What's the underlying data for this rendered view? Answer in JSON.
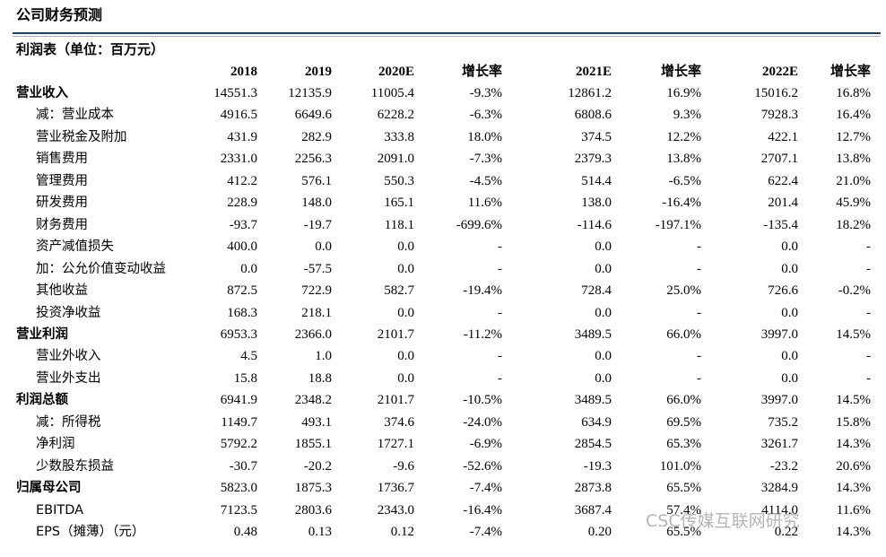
{
  "header": {
    "title": "公司财务预测",
    "subtitle": "利润表（单位：百万元）"
  },
  "table": {
    "columns": [
      "2018",
      "2019",
      "2020E",
      "增长率",
      "2021E",
      "增长率",
      "2022E",
      "增长率"
    ],
    "rows": [
      [
        "营业收入",
        "14551.3",
        "12135.9",
        "11005.4",
        "-9.3%",
        "12861.2",
        "16.9%",
        "15016.2",
        "16.8%"
      ],
      [
        "减：营业成本",
        "4916.5",
        "6649.6",
        "6228.2",
        "-6.3%",
        "6808.6",
        "9.3%",
        "7928.3",
        "16.4%"
      ],
      [
        "营业税金及附加",
        "431.9",
        "282.9",
        "333.8",
        "18.0%",
        "374.5",
        "12.2%",
        "422.1",
        "12.7%"
      ],
      [
        "销售费用",
        "2331.0",
        "2256.3",
        "2091.0",
        "-7.3%",
        "2379.3",
        "13.8%",
        "2707.1",
        "13.8%"
      ],
      [
        "管理费用",
        "412.2",
        "576.1",
        "550.3",
        "-4.5%",
        "514.4",
        "-6.5%",
        "622.4",
        "21.0%"
      ],
      [
        "研发费用",
        "228.9",
        "148.0",
        "165.1",
        "11.6%",
        "138.0",
        "-16.4%",
        "201.4",
        "45.9%"
      ],
      [
        "财务费用",
        "-93.7",
        "-19.7",
        "118.1",
        "-699.6%",
        "-114.6",
        "-197.1%",
        "-135.4",
        "18.2%"
      ],
      [
        "资产减值损失",
        "400.0",
        "0.0",
        "0.0",
        "-",
        "0.0",
        "-",
        "0.0",
        "-"
      ],
      [
        "加：公允价值变动收益",
        "0.0",
        "-57.5",
        "0.0",
        "-",
        "0.0",
        "-",
        "0.0",
        "-"
      ],
      [
        "其他收益",
        "872.5",
        "722.9",
        "582.7",
        "-19.4%",
        "728.4",
        "25.0%",
        "726.6",
        "-0.2%"
      ],
      [
        "投资净收益",
        "168.3",
        "218.1",
        "0.0",
        "-",
        "0.0",
        "-",
        "0.0",
        "-"
      ],
      [
        "营业利润",
        "6953.3",
        "2366.0",
        "2101.7",
        "-11.2%",
        "3489.5",
        "66.0%",
        "3997.0",
        "14.5%"
      ],
      [
        "营业外收入",
        "4.5",
        "1.0",
        "0.0",
        "-",
        "0.0",
        "-",
        "0.0",
        "-"
      ],
      [
        "营业外支出",
        "15.8",
        "18.8",
        "0.0",
        "-",
        "0.0",
        "-",
        "0.0",
        "-"
      ],
      [
        "利润总额",
        "6941.9",
        "2348.2",
        "2101.7",
        "-10.5%",
        "3489.5",
        "66.0%",
        "3997.0",
        "14.5%"
      ],
      [
        "减：所得税",
        "1149.7",
        "493.1",
        "374.6",
        "-24.0%",
        "634.9",
        "69.5%",
        "735.2",
        "15.8%"
      ],
      [
        "净利润",
        "5792.2",
        "1855.1",
        "1727.1",
        "-6.9%",
        "2854.5",
        "65.3%",
        "3261.7",
        "14.3%"
      ],
      [
        "少数股东损益",
        "-30.7",
        "-20.2",
        "-9.6",
        "-52.6%",
        "-19.3",
        "101.0%",
        "-23.2",
        "20.6%"
      ],
      [
        "归属母公司",
        "5823.0",
        "1875.3",
        "1736.7",
        "-7.4%",
        "2873.8",
        "65.5%",
        "3284.9",
        "14.3%"
      ],
      [
        "EBITDA",
        "7123.5",
        "2803.6",
        "2343.0",
        "-16.4%",
        "3687.4",
        "57.4%",
        "4114.0",
        "11.6%"
      ],
      [
        "EPS（摊薄）（元）",
        "0.48",
        "0.13",
        "0.12",
        "-7.4%",
        "0.20",
        "65.5%",
        "0.22",
        "14.3%"
      ]
    ]
  },
  "watermark": "CSC传媒互联网研究"
}
